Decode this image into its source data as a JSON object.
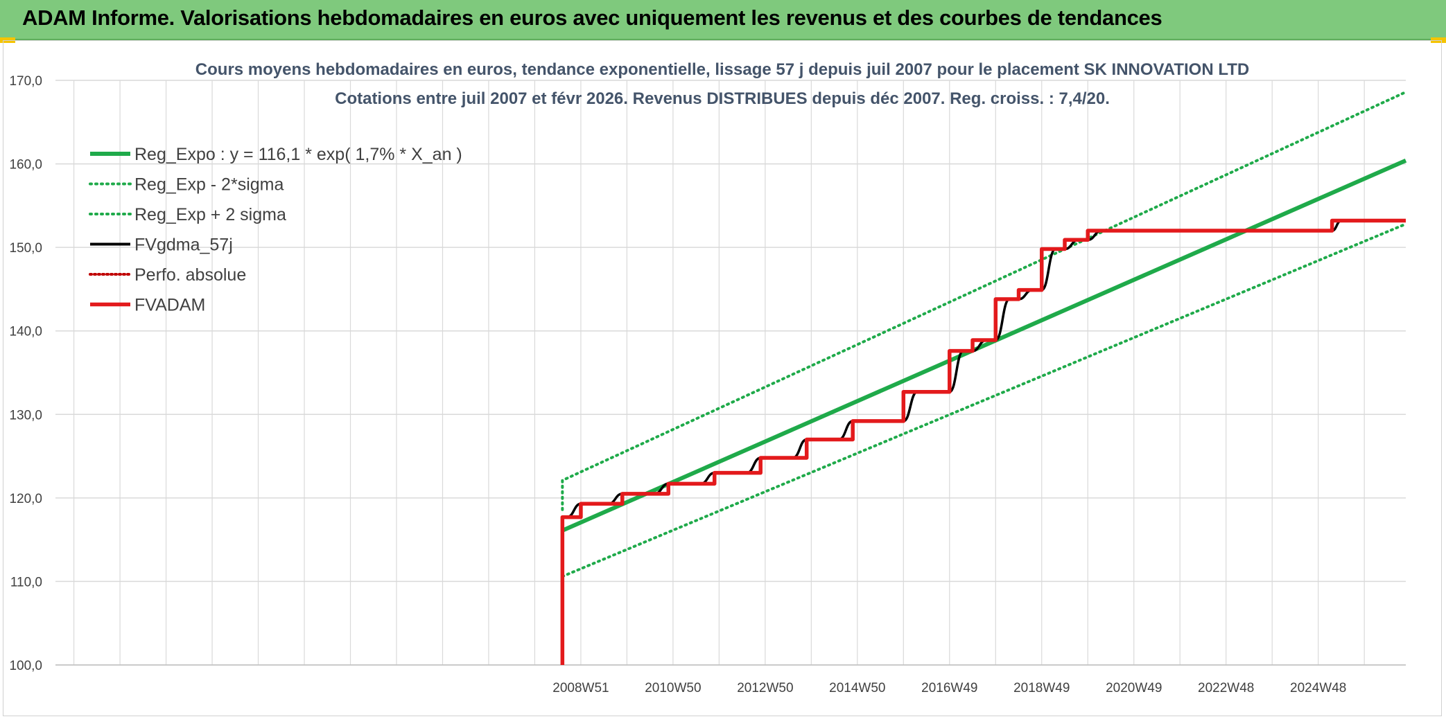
{
  "page": {
    "header_title": "ADAM Informe. Valorisations hebdomadaires en euros avec uniquement les revenus et des courbes de tendances"
  },
  "colors": {
    "banner": "#7fc97d",
    "reg_expo": "#1faa4a",
    "sigma": "#1faa4a",
    "fvgdma": "#000000",
    "perfo": "#c00000",
    "fvadam": "#e31a1c",
    "grid": "#d9d9d9"
  },
  "chart_data": {
    "type": "line",
    "title_line1": "Cours moyens hebdomadaires en euros, tendance exponentielle, lissage 57 j depuis juil 2007 pour le placement SK INNOVATION LTD",
    "title_line2": "Cotations entre juil 2007 et févr 2026. Revenus DISTRIBUES depuis déc 2007. Reg. croiss. : 7,4/20.",
    "xlabel": "",
    "ylabel": "",
    "ylim": [
      100,
      170
    ],
    "xlim": [
      1997.6,
      2026.9
    ],
    "y_ticks": [
      "100,0",
      "110,0",
      "120,0",
      "130,0",
      "140,0",
      "150,0",
      "160,0",
      "170,0"
    ],
    "x_ticks": [
      {
        "label": "2008W51",
        "x": 2009.0
      },
      {
        "label": "2010W50",
        "x": 2011.0
      },
      {
        "label": "2012W50",
        "x": 2013.0
      },
      {
        "label": "2014W50",
        "x": 2015.0
      },
      {
        "label": "2016W49",
        "x": 2017.0
      },
      {
        "label": "2018W49",
        "x": 2019.0
      },
      {
        "label": "2020W49",
        "x": 2021.0
      },
      {
        "label": "2022W48",
        "x": 2023.0
      },
      {
        "label": "2024W48",
        "x": 2025.0
      }
    ],
    "grid": true,
    "legend_position": "top-left",
    "series": [
      {
        "name": "Reg_Expo : y = 116,1 * exp( 1,7% *  X_an )",
        "style": "solid-thick",
        "x": [
          2008.6,
          2026.9
        ],
        "y": [
          116.1,
          160.4
        ]
      },
      {
        "name": "Reg_Exp - 2*sigma",
        "style": "dotted",
        "x": [
          2008.6,
          2026.9
        ],
        "y": [
          110.6,
          152.8
        ]
      },
      {
        "name": "Reg_Exp + 2 sigma",
        "style": "dotted",
        "x": [
          2008.6,
          2008.6,
          2026.9
        ],
        "y": [
          118.6,
          122.1,
          168.6
        ]
      },
      {
        "name": "FVgdma_57j",
        "style": "solid",
        "x": [
          2008.6,
          2008.7,
          2009.0,
          2009.6,
          2009.9,
          2010.6,
          2010.9,
          2011.6,
          2011.9,
          2012.6,
          2012.9,
          2013.6,
          2013.9,
          2014.6,
          2014.9,
          2016.0,
          2016.3,
          2017.0,
          2017.3,
          2017.5,
          2017.8,
          2018.0,
          2018.3,
          2018.5,
          2018.8,
          2019.0,
          2019.3,
          2019.5,
          2019.8,
          2020.0,
          2020.3,
          2025.3,
          2025.5,
          2025.9,
          2026.9
        ],
        "y": [
          117.7,
          117.7,
          119.3,
          119.3,
          120.5,
          120.5,
          121.7,
          121.7,
          123.0,
          123.0,
          124.8,
          124.8,
          127.0,
          127.0,
          129.2,
          129.2,
          132.7,
          132.7,
          137.6,
          137.6,
          138.9,
          138.9,
          143.8,
          143.8,
          144.9,
          144.9,
          149.8,
          149.8,
          150.9,
          150.9,
          152.0,
          152.0,
          153.2,
          153.2,
          153.2
        ]
      },
      {
        "name": "Perfo. absolue",
        "style": "dotted",
        "x": [],
        "y": []
      },
      {
        "name": "FVADAM",
        "style": "solid-thick",
        "x": [
          2008.6,
          2008.6,
          2009.0,
          2009.0,
          2009.9,
          2009.9,
          2010.9,
          2010.9,
          2011.9,
          2011.9,
          2012.9,
          2012.9,
          2013.9,
          2013.9,
          2014.9,
          2014.9,
          2016.0,
          2016.0,
          2017.0,
          2017.0,
          2017.5,
          2017.5,
          2018.0,
          2018.0,
          2018.5,
          2018.5,
          2019.0,
          2019.0,
          2019.5,
          2019.5,
          2020.0,
          2020.0,
          2025.3,
          2025.3,
          2026.9
        ],
        "y": [
          100.0,
          117.7,
          117.7,
          119.3,
          119.3,
          120.5,
          120.5,
          121.7,
          121.7,
          123.0,
          123.0,
          124.8,
          124.8,
          127.0,
          127.0,
          129.2,
          129.2,
          132.7,
          132.7,
          137.6,
          137.6,
          138.9,
          138.9,
          143.8,
          143.8,
          144.9,
          144.9,
          149.8,
          149.8,
          150.9,
          150.9,
          152.0,
          152.0,
          153.2,
          153.2
        ]
      }
    ]
  }
}
